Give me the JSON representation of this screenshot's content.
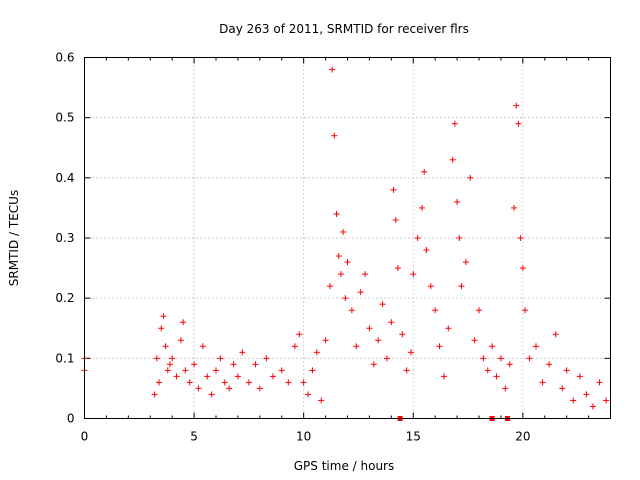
{
  "chart_data": {
    "type": "scatter",
    "title": "Day 263 of 2011, SRMTID for receiver flrs",
    "xlabel": "GPS time / hours",
    "ylabel": "SRMTID / TECUs",
    "xlim": [
      0,
      24
    ],
    "ylim": [
      0,
      0.6
    ],
    "xticks": [
      0,
      5,
      10,
      15,
      20
    ],
    "xtick_labels": [
      "0",
      "5",
      "10",
      "15",
      "20"
    ],
    "yticks": [
      0,
      0.1,
      0.2,
      0.3,
      0.4,
      0.5,
      0.6
    ],
    "ytick_labels": [
      "0",
      "0.1",
      "0.2",
      "0.3",
      "0.4",
      "0.5",
      "0.6"
    ],
    "grid": true,
    "marker": "+",
    "color": "#ff0000",
    "legend": "none",
    "series": [
      {
        "name": "SRMTID",
        "x": [
          0.0,
          0.0,
          3.2,
          3.3,
          3.4,
          3.5,
          3.6,
          3.7,
          3.8,
          3.9,
          4.0,
          4.2,
          4.4,
          4.5,
          4.6,
          4.8,
          5.0,
          5.2,
          5.4,
          5.6,
          5.8,
          6.0,
          6.2,
          6.4,
          6.6,
          6.8,
          7.0,
          7.2,
          7.5,
          7.8,
          8.0,
          8.3,
          8.6,
          9.0,
          9.3,
          9.6,
          9.8,
          10.0,
          10.2,
          10.4,
          10.6,
          10.8,
          11.0,
          11.2,
          11.3,
          11.4,
          11.5,
          11.6,
          11.7,
          11.8,
          11.9,
          12.0,
          12.2,
          12.4,
          12.6,
          12.8,
          13.0,
          13.2,
          13.4,
          13.6,
          13.8,
          14.0,
          14.1,
          14.2,
          14.3,
          14.5,
          14.7,
          14.9,
          15.0,
          15.2,
          15.4,
          15.5,
          15.6,
          15.8,
          16.0,
          16.2,
          16.4,
          16.6,
          16.8,
          16.9,
          17.0,
          17.1,
          17.2,
          17.4,
          17.6,
          17.8,
          18.0,
          18.2,
          18.4,
          18.6,
          18.8,
          19.0,
          19.2,
          19.4,
          19.6,
          19.7,
          19.8,
          19.9,
          20.0,
          20.1,
          20.3,
          20.6,
          20.9,
          21.2,
          21.5,
          21.8,
          22.0,
          22.3,
          22.6,
          22.9,
          23.2,
          23.5,
          23.8
        ],
        "y": [
          0.08,
          0.1,
          0.04,
          0.1,
          0.06,
          0.15,
          0.17,
          0.12,
          0.08,
          0.09,
          0.1,
          0.07,
          0.13,
          0.16,
          0.08,
          0.06,
          0.09,
          0.05,
          0.12,
          0.07,
          0.04,
          0.08,
          0.1,
          0.06,
          0.05,
          0.09,
          0.07,
          0.11,
          0.06,
          0.09,
          0.05,
          0.1,
          0.07,
          0.08,
          0.06,
          0.12,
          0.14,
          0.06,
          0.04,
          0.08,
          0.11,
          0.03,
          0.13,
          0.22,
          0.58,
          0.47,
          0.34,
          0.27,
          0.24,
          0.31,
          0.2,
          0.26,
          0.18,
          0.12,
          0.21,
          0.24,
          0.15,
          0.09,
          0.13,
          0.19,
          0.1,
          0.16,
          0.38,
          0.33,
          0.25,
          0.14,
          0.08,
          0.11,
          0.24,
          0.3,
          0.35,
          0.41,
          0.28,
          0.22,
          0.18,
          0.12,
          0.07,
          0.15,
          0.43,
          0.49,
          0.36,
          0.3,
          0.22,
          0.26,
          0.4,
          0.13,
          0.18,
          0.1,
          0.08,
          0.12,
          0.07,
          0.1,
          0.05,
          0.09,
          0.35,
          0.52,
          0.49,
          0.3,
          0.25,
          0.18,
          0.1,
          0.12,
          0.06,
          0.09,
          0.14,
          0.05,
          0.08,
          0.03,
          0.07,
          0.04,
          0.02,
          0.06,
          0.03
        ]
      }
    ],
    "zero_points_x": [
      14.4,
      18.6,
      19.3
    ]
  }
}
